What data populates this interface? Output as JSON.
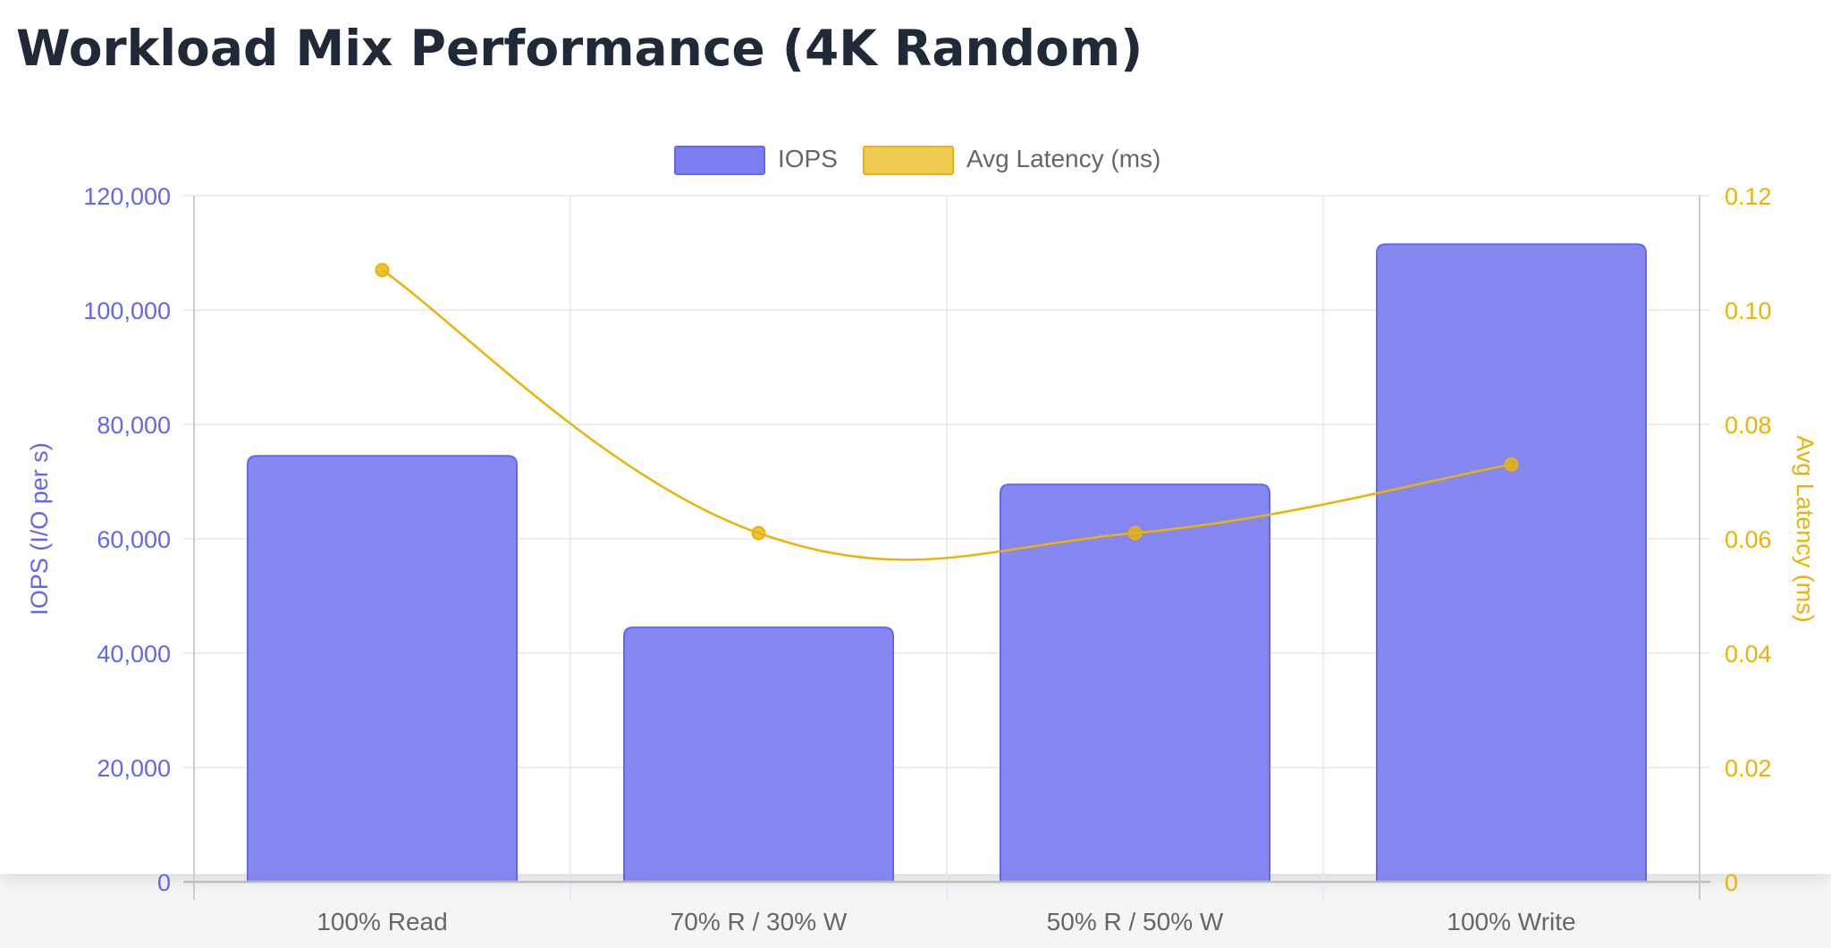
{
  "page": {
    "title": "Workload Mix Performance (4K Random)"
  },
  "colors": {
    "iops": "#7b7ef0",
    "iops_border": "#6366f1",
    "latency": "#eab308",
    "grid": "#e5e7eb",
    "tick_text": "#666666"
  },
  "chart_data": {
    "type": "bar",
    "categories": [
      "100% Read",
      "70% R / 30% W",
      "50% R / 50% W",
      "100% Write"
    ],
    "series": [
      {
        "name": "IOPS",
        "type": "bar",
        "axis": "left",
        "values": [
          74500,
          44500,
          69500,
          111500
        ]
      },
      {
        "name": "Avg Latency (ms)",
        "type": "line",
        "axis": "right",
        "values": [
          0.107,
          0.061,
          0.061,
          0.073
        ]
      }
    ],
    "y_left": {
      "label": "IOPS (I/O per s)",
      "range": [
        0,
        120000
      ],
      "ticks": [
        "0",
        "20,000",
        "40,000",
        "60,000",
        "80,000",
        "100,000",
        "120,000"
      ]
    },
    "y_right": {
      "label": "Avg Latency (ms)",
      "range": [
        0,
        0.12
      ],
      "ticks": [
        "0",
        "0.02",
        "0.04",
        "0.06",
        "0.08",
        "0.10",
        "0.12"
      ]
    },
    "legend": {
      "position": "top",
      "items": [
        "IOPS",
        "Avg Latency (ms)"
      ]
    },
    "grid": true
  }
}
